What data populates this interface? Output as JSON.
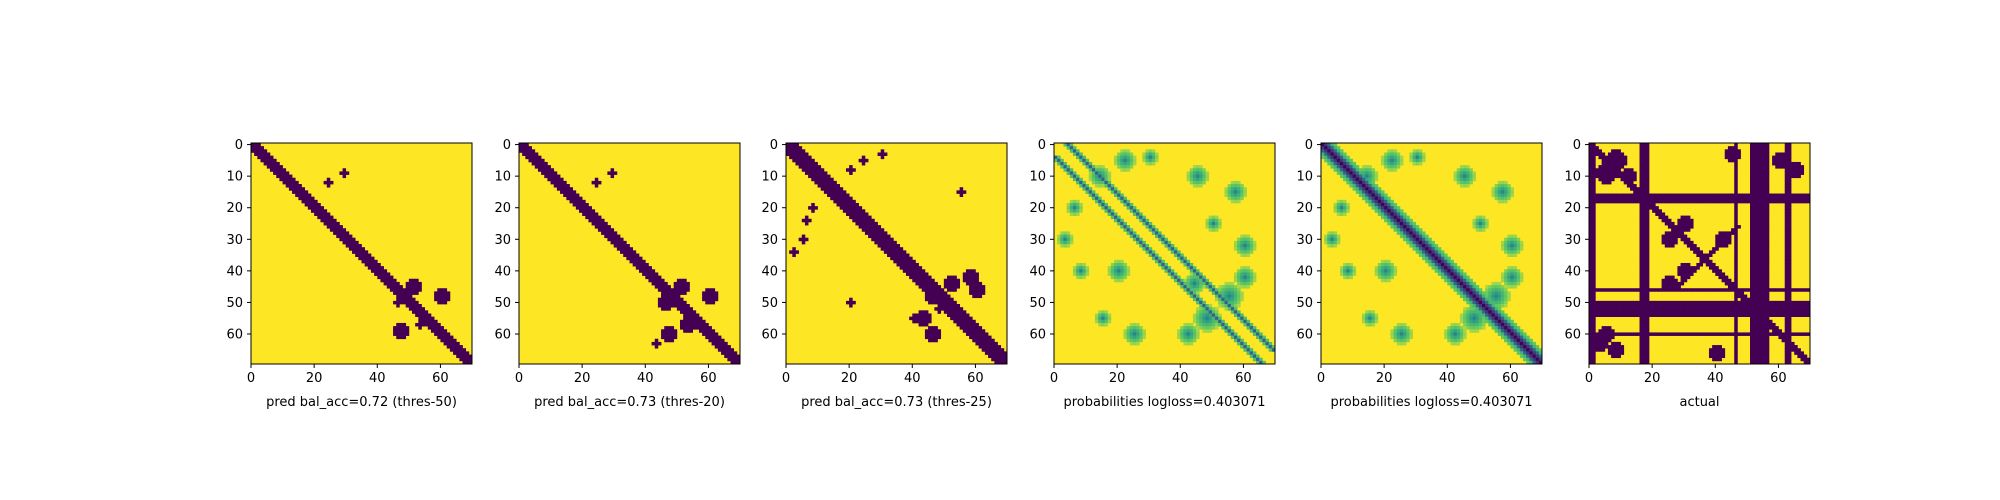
{
  "figure": {
    "colors": {
      "low": "#440154",
      "high": "#fde725",
      "mid_dark": "#21918c",
      "mid_light": "#5ec962",
      "mid_pale": "#b5de2b"
    }
  },
  "chart_data": [
    {
      "type": "heatmap",
      "title": "",
      "xlabel": "pred bal_acc=0.72 (thres-50)",
      "ylabel": "",
      "xlim": [
        0,
        70
      ],
      "ylim": [
        70,
        0
      ],
      "xticks": [
        "0",
        "20",
        "40",
        "60"
      ],
      "yticks": [
        "0",
        "10",
        "20",
        "30",
        "40",
        "50",
        "60"
      ],
      "colormap": "viridis",
      "values": "binary",
      "features": {
        "diagonal_band_halfwidth": 2,
        "patches": [
          [
            12,
            24,
            1
          ],
          [
            9,
            29,
            1
          ],
          [
            45,
            51,
            2
          ],
          [
            50,
            46,
            1
          ],
          [
            48,
            60,
            2
          ],
          [
            57,
            53,
            1
          ],
          [
            59,
            47,
            2
          ]
        ]
      }
    },
    {
      "type": "heatmap",
      "title": "",
      "xlabel": "pred bal_acc=0.73 (thres-20)",
      "ylabel": "",
      "xlim": [
        0,
        70
      ],
      "ylim": [
        70,
        0
      ],
      "xticks": [
        "0",
        "20",
        "40",
        "60"
      ],
      "yticks": [
        "0",
        "10",
        "20",
        "30",
        "40",
        "50",
        "60"
      ],
      "colormap": "viridis",
      "values": "binary",
      "features": {
        "diagonal_band_halfwidth": 2,
        "patches": [
          [
            12,
            24,
            1
          ],
          [
            9,
            29,
            1
          ],
          [
            45,
            51,
            2
          ],
          [
            50,
            46,
            2
          ],
          [
            48,
            60,
            2
          ],
          [
            57,
            53,
            2
          ],
          [
            60,
            47,
            2
          ],
          [
            63,
            43,
            1
          ]
        ]
      }
    },
    {
      "type": "heatmap",
      "title": "",
      "xlabel": "pred bal_acc=0.73 (thres-25)",
      "ylabel": "",
      "xlim": [
        0,
        70
      ],
      "ylim": [
        70,
        0
      ],
      "xticks": [
        "0",
        "20",
        "40",
        "60"
      ],
      "yticks": [
        "0",
        "10",
        "20",
        "30",
        "40",
        "50",
        "60"
      ],
      "colormap": "viridis",
      "values": "binary",
      "features": {
        "diagonal_band_halfwidth": 3,
        "patches": [
          [
            8,
            20,
            1
          ],
          [
            5,
            24,
            1
          ],
          [
            3,
            30,
            1
          ],
          [
            20,
            8,
            1
          ],
          [
            24,
            6,
            1
          ],
          [
            30,
            5,
            1
          ],
          [
            34,
            2,
            1
          ],
          [
            44,
            52,
            2
          ],
          [
            48,
            46,
            2
          ],
          [
            42,
            58,
            2
          ],
          [
            55,
            43,
            2
          ],
          [
            60,
            46,
            2
          ],
          [
            46,
            60,
            2
          ],
          [
            52,
            48,
            1
          ],
          [
            55,
            40,
            1
          ],
          [
            50,
            20,
            1
          ],
          [
            15,
            55,
            1
          ]
        ]
      }
    },
    {
      "type": "heatmap",
      "title": "",
      "xlabel": "probabilities logloss=0.403071",
      "ylabel": "",
      "xlim": [
        0,
        70
      ],
      "ylim": [
        70,
        0
      ],
      "xticks": [
        "0",
        "20",
        "40",
        "60"
      ],
      "yticks": [
        "0",
        "10",
        "20",
        "30",
        "40",
        "50",
        "60"
      ],
      "colormap": "viridis",
      "values": "continuous",
      "features": {
        "diagonal_offsets": [
          -4,
          4
        ],
        "patches": [
          [
            5,
            22,
            3
          ],
          [
            10,
            14,
            3
          ],
          [
            4,
            30,
            2
          ],
          [
            20,
            6,
            2
          ],
          [
            30,
            3,
            2
          ],
          [
            10,
            45,
            3
          ],
          [
            25,
            50,
            2
          ],
          [
            40,
            20,
            3
          ],
          [
            55,
            15,
            2
          ],
          [
            44,
            44,
            3
          ],
          [
            48,
            55,
            4
          ],
          [
            55,
            48,
            4
          ],
          [
            60,
            42,
            3
          ],
          [
            42,
            60,
            3
          ],
          [
            15,
            57,
            3
          ],
          [
            32,
            60,
            3
          ],
          [
            60,
            25,
            3
          ],
          [
            40,
            8,
            2
          ]
        ]
      }
    },
    {
      "type": "heatmap",
      "title": "",
      "xlabel": "probabilities logloss=0.403071",
      "ylabel": "",
      "xlim": [
        0,
        70
      ],
      "ylim": [
        70,
        0
      ],
      "xticks": [
        "0",
        "20",
        "40",
        "60"
      ],
      "yticks": [
        "0",
        "10",
        "20",
        "30",
        "40",
        "50",
        "60"
      ],
      "colormap": "viridis",
      "values": "continuous",
      "features": {
        "diagonal_band_halfwidth": 2,
        "patches": [
          [
            5,
            22,
            3
          ],
          [
            10,
            14,
            3
          ],
          [
            4,
            30,
            2
          ],
          [
            20,
            6,
            2
          ],
          [
            30,
            3,
            2
          ],
          [
            10,
            45,
            3
          ],
          [
            25,
            50,
            2
          ],
          [
            40,
            20,
            3
          ],
          [
            55,
            15,
            2
          ],
          [
            48,
            55,
            4
          ],
          [
            55,
            48,
            4
          ],
          [
            60,
            42,
            3
          ],
          [
            42,
            60,
            3
          ],
          [
            15,
            57,
            3
          ],
          [
            32,
            60,
            3
          ],
          [
            60,
            25,
            3
          ],
          [
            40,
            8,
            2
          ]
        ]
      }
    },
    {
      "type": "heatmap",
      "title": "",
      "xlabel": "actual",
      "ylabel": "",
      "xlim": [
        0,
        70
      ],
      "ylim": [
        70,
        0
      ],
      "xticks": [
        "0",
        "20",
        "40",
        "60"
      ],
      "yticks": [
        "0",
        "10",
        "20",
        "30",
        "40",
        "50",
        "60"
      ],
      "colormap": "viridis",
      "values": "binary",
      "features": {
        "full_columns": [
          0,
          1,
          16,
          17,
          18,
          46,
          51,
          52,
          53,
          54,
          55,
          56,
          62,
          63
        ],
        "full_rows": [
          16,
          17,
          18,
          46,
          50,
          51,
          52,
          53,
          54,
          60
        ],
        "diagonal_band_halfwidth": 1,
        "anti_diagonal": {
          "center": [
            36,
            36
          ],
          "length": 10
        },
        "patches": [
          [
            5,
            8,
            3
          ],
          [
            9,
            5,
            3
          ],
          [
            10,
            12,
            2
          ],
          [
            25,
            30,
            2
          ],
          [
            30,
            25,
            2
          ],
          [
            40,
            30,
            2
          ],
          [
            44,
            25,
            2
          ],
          [
            5,
            60,
            2
          ],
          [
            8,
            65,
            2
          ],
          [
            3,
            45,
            2
          ],
          [
            60,
            5,
            2
          ],
          [
            65,
            8,
            2
          ],
          [
            63,
            3,
            2
          ],
          [
            66,
            40,
            2
          ],
          [
            30,
            42,
            2
          ]
        ]
      }
    }
  ]
}
